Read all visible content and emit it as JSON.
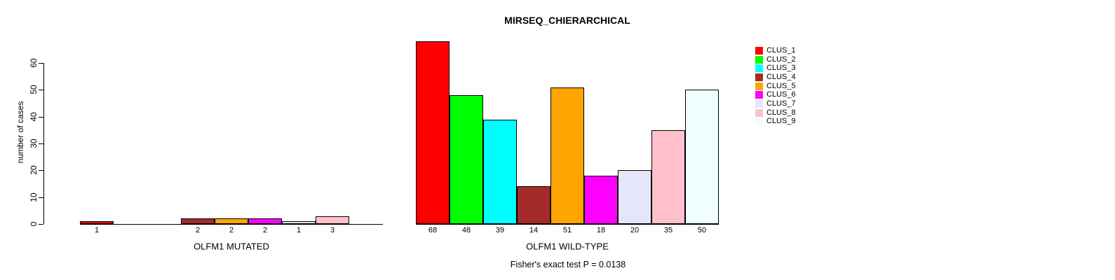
{
  "chart_data": {
    "type": "bar",
    "title": "MIRSEQ_CHIERARCHICAL",
    "ylabel": "number of cases",
    "ylim": [
      0,
      60
    ],
    "yticks": [
      0,
      10,
      20,
      30,
      40,
      50,
      60
    ],
    "grid": false,
    "legend_position": "right",
    "bar_value_labels_shown": true,
    "series_labels": [
      "CLUS_1",
      "CLUS_2",
      "CLUS_3",
      "CLUS_4",
      "CLUS_5",
      "CLUS_6",
      "CLUS_7",
      "CLUS_8",
      "CLUS_9"
    ],
    "series_colors": [
      "#FF0000",
      "#00FF00",
      "#00FFFF",
      "#A52A2A",
      "#FFA500",
      "#FF00FF",
      "#E6E6FA",
      "#FFC0CB",
      "#F0FFFF"
    ],
    "groups": [
      {
        "label": "OLFM1 MUTATED",
        "values": [
          1,
          0,
          0,
          2,
          2,
          2,
          1,
          3,
          0
        ]
      },
      {
        "label": "OLFM1 WILD-TYPE",
        "values": [
          68,
          48,
          39,
          14,
          51,
          18,
          20,
          35,
          50
        ]
      }
    ],
    "annotation": "Fisher's exact test P = 0.0138"
  }
}
